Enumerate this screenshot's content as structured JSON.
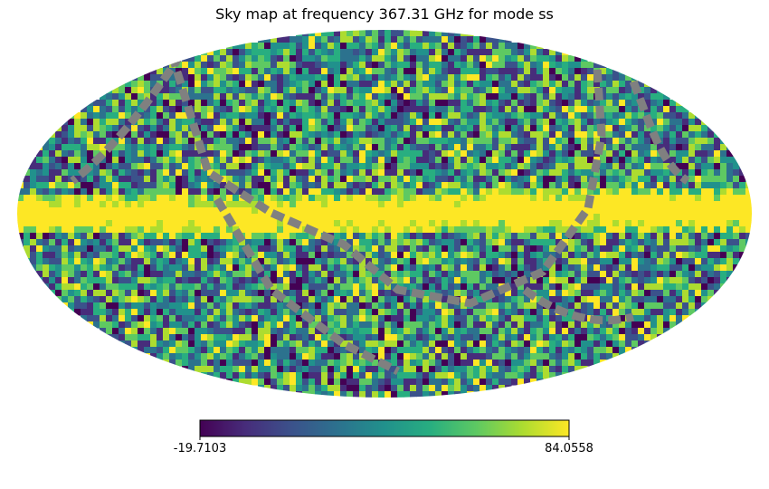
{
  "chart_data": {
    "type": "heatmap",
    "projection": "mollweide",
    "title": "Sky map at frequency 367.31 GHz for mode ss",
    "colormap": "viridis",
    "colorbar": {
      "min_label": "-19.7103",
      "max_label": "84.0558",
      "range": [
        -19.7103,
        84.0558
      ],
      "orientation": "horizontal",
      "placement": "bottom"
    },
    "masked_color": "#808080",
    "features": {
      "galactic_plane_band": "bright yellow band across the map centre",
      "masked_scan_stripes": "grey diagonal scan stripes"
    }
  }
}
